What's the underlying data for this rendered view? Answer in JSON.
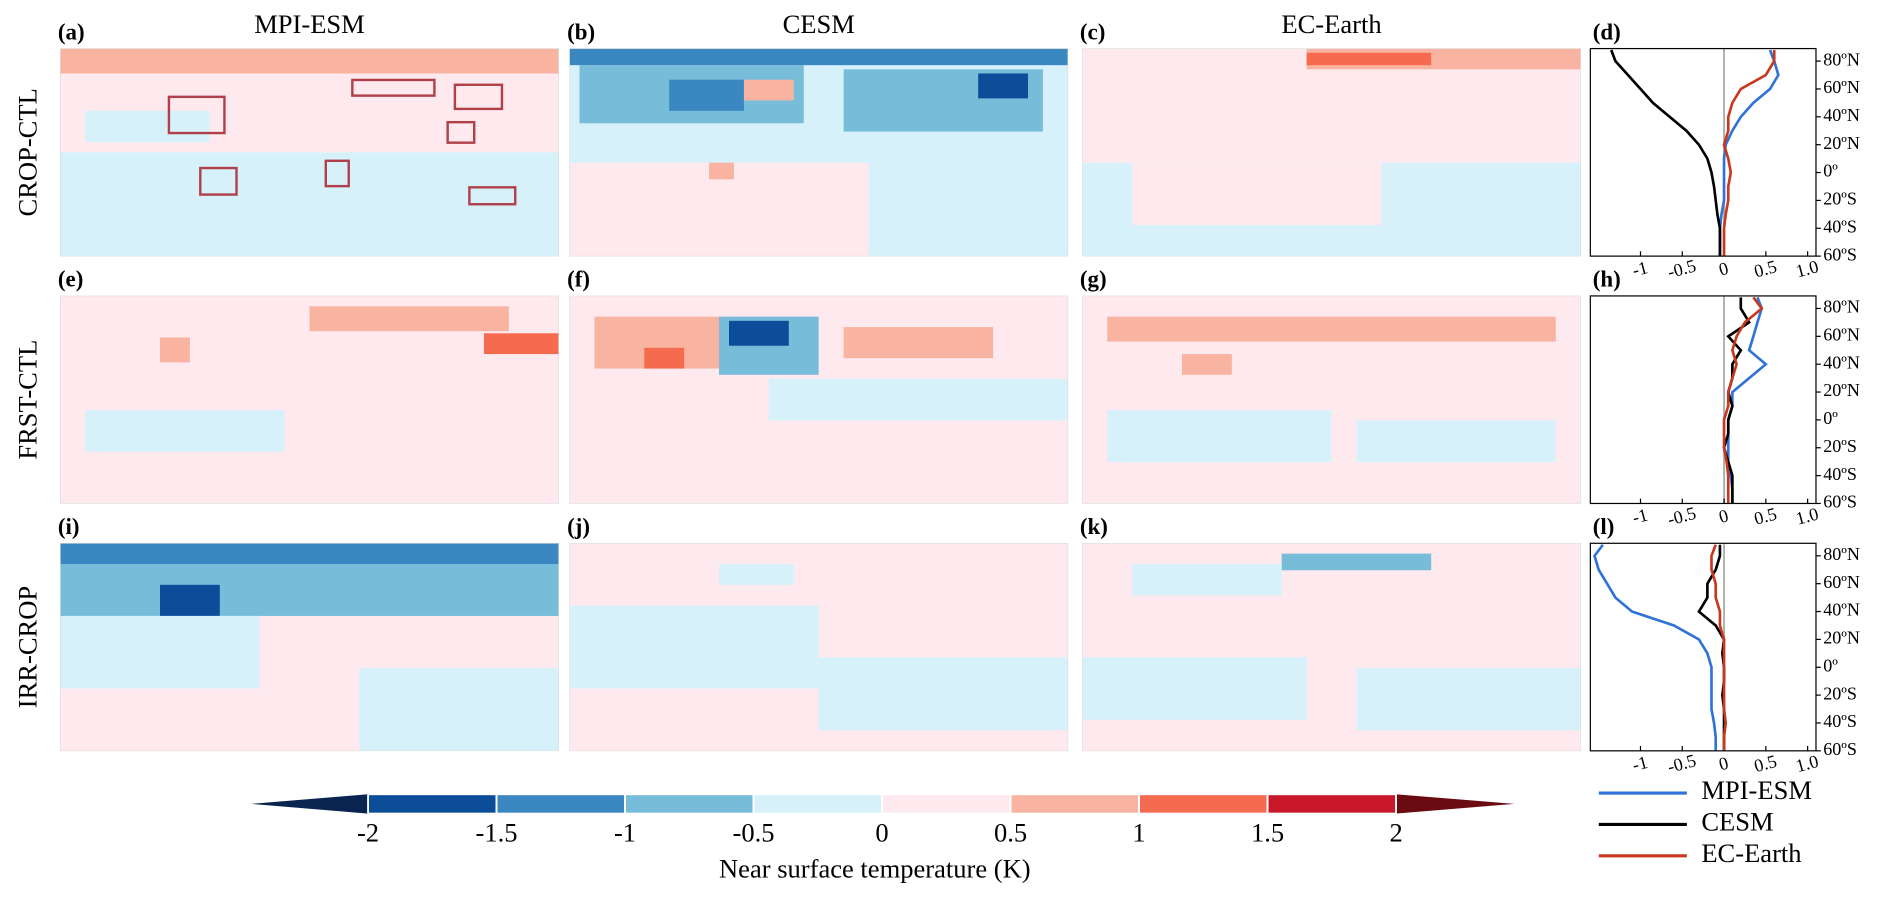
{
  "column_titles": [
    "MPI-ESM",
    "CESM",
    "EC-Earth"
  ],
  "row_labels": [
    "CROP-CTL",
    "FRST-CTL",
    "IRR-CROP"
  ],
  "map_panels": [
    "(a)",
    "(b)",
    "(c)",
    "(e)",
    "(f)",
    "(g)",
    "(i)",
    "(j)",
    "(k)"
  ],
  "colorbar": {
    "label": "Near surface temperature (K)",
    "lim": [
      -2,
      2
    ],
    "ticks": [
      -2,
      -1.5,
      -1,
      -0.5,
      0,
      0.5,
      1,
      1.5,
      2
    ],
    "colors": [
      "#0b4d98",
      "#3b87c2",
      "#77bcd9",
      "#d7f1fb",
      "#fde9ee",
      "#f9b4a1",
      "#f56b4f",
      "#c9182a"
    ],
    "extend_colors": [
      "#08244f",
      "#6a0b12"
    ]
  },
  "chart_data": [
    {
      "type": "line",
      "panel_label": "(d)",
      "y": [
        -60,
        -50,
        -40,
        -30,
        -20,
        -10,
        0,
        10,
        20,
        30,
        40,
        50,
        60,
        70,
        80,
        88
      ],
      "ylim": [
        -60,
        89
      ],
      "yticks": [
        {
          "value": 80,
          "label": "80ºN"
        },
        {
          "value": 60,
          "label": "60ºN"
        },
        {
          "value": 40,
          "label": "40ºN"
        },
        {
          "value": 20,
          "label": "20ºN"
        },
        {
          "value": 0,
          "label": "0º"
        },
        {
          "value": -20,
          "label": "20ºS"
        },
        {
          "value": -40,
          "label": "40ºS"
        },
        {
          "value": -60,
          "label": "60ºS"
        }
      ],
      "xlim": [
        -1.6,
        1.1
      ],
      "xticks": [
        -1,
        -0.5,
        0,
        {
          "value": 1,
          "label": "1.0"
        },
        0.5
      ],
      "series": [
        {
          "name": "MPI-ESM",
          "color": "#2f73d9",
          "values": [
            -0.05,
            -0.05,
            -0.05,
            -0.03,
            0,
            0,
            0,
            0,
            0.02,
            0.1,
            0.2,
            0.35,
            0.55,
            0.65,
            0.6,
            0.55
          ]
        },
        {
          "name": "CESM",
          "color": "#000000",
          "values": [
            -0.05,
            -0.05,
            -0.05,
            -0.08,
            -0.1,
            -0.12,
            -0.15,
            -0.2,
            -0.3,
            -0.45,
            -0.65,
            -0.85,
            -1.0,
            -1.15,
            -1.3,
            -1.35
          ]
        },
        {
          "name": "EC-Earth",
          "color": "#c8381f",
          "values": [
            0,
            0,
            0,
            0.02,
            0.05,
            0.05,
            0.08,
            0.05,
            0,
            0.05,
            0.05,
            0.1,
            0.2,
            0.5,
            0.6,
            0.6
          ]
        }
      ]
    },
    {
      "type": "line",
      "panel_label": "(h)",
      "y": [
        -60,
        -50,
        -40,
        -30,
        -20,
        -10,
        0,
        10,
        20,
        30,
        40,
        50,
        60,
        70,
        80,
        88
      ],
      "ylim": [
        -60,
        89
      ],
      "yticks": [
        {
          "value": 80,
          "label": "80ºN"
        },
        {
          "value": 60,
          "label": "60ºN"
        },
        {
          "value": 40,
          "label": "40ºN"
        },
        {
          "value": 20,
          "label": "20ºN"
        },
        {
          "value": 0,
          "label": "0º"
        },
        {
          "value": -20,
          "label": "20ºS"
        },
        {
          "value": -40,
          "label": "40ºS"
        },
        {
          "value": -60,
          "label": "60ºS"
        }
      ],
      "xlim": [
        -1.6,
        1.1
      ],
      "xticks": [
        -1,
        -0.5,
        0,
        {
          "value": 1,
          "label": "1.0"
        },
        0.5
      ],
      "series": [
        {
          "name": "MPI-ESM",
          "color": "#2f73d9",
          "values": [
            0.1,
            0.1,
            0.08,
            0.05,
            0.05,
            0.05,
            0.05,
            0.1,
            0.1,
            0.3,
            0.5,
            0.3,
            0.35,
            0.4,
            0.45,
            0.4
          ]
        },
        {
          "name": "CESM",
          "color": "#000000",
          "values": [
            0.1,
            0.1,
            0.1,
            0.05,
            0,
            0.05,
            0.05,
            0.1,
            0.05,
            0.1,
            0.1,
            0.2,
            0.05,
            0.3,
            0.2,
            0.2
          ]
        },
        {
          "name": "EC-Earth",
          "color": "#c8381f",
          "values": [
            0.05,
            0.05,
            0.05,
            0.03,
            0,
            0,
            0,
            0.05,
            0.05,
            0.1,
            0.15,
            0.1,
            0.15,
            0.25,
            0.45,
            0.35
          ]
        }
      ]
    },
    {
      "type": "line",
      "panel_label": "(l)",
      "y": [
        -60,
        -50,
        -40,
        -30,
        -20,
        -10,
        0,
        10,
        20,
        30,
        40,
        50,
        60,
        70,
        80,
        88
      ],
      "ylim": [
        -60,
        89
      ],
      "yticks": [
        {
          "value": 80,
          "label": "80ºN"
        },
        {
          "value": 60,
          "label": "60ºN"
        },
        {
          "value": 40,
          "label": "40ºN"
        },
        {
          "value": 20,
          "label": "20ºN"
        },
        {
          "value": 0,
          "label": "0º"
        },
        {
          "value": -20,
          "label": "20ºS"
        },
        {
          "value": -40,
          "label": "40ºS"
        },
        {
          "value": -60,
          "label": "60ºS"
        }
      ],
      "xlim": [
        -1.6,
        1.1
      ],
      "xticks": [
        -1,
        -0.5,
        0,
        {
          "value": 1,
          "label": "1.0"
        },
        0.5
      ],
      "series": [
        {
          "name": "MPI-ESM",
          "color": "#2f73d9",
          "values": [
            -0.1,
            -0.1,
            -0.12,
            -0.15,
            -0.15,
            -0.15,
            -0.15,
            -0.2,
            -0.3,
            -0.6,
            -1.1,
            -1.3,
            -1.4,
            -1.5,
            -1.55,
            -1.45
          ]
        },
        {
          "name": "CESM",
          "color": "#000000",
          "values": [
            0,
            0,
            0,
            0,
            -0.02,
            0,
            0,
            -0.02,
            0,
            -0.1,
            -0.3,
            -0.2,
            -0.2,
            -0.1,
            -0.05,
            -0.05
          ]
        },
        {
          "name": "EC-Earth",
          "color": "#c8381f",
          "values": [
            0,
            0,
            0.02,
            0,
            0,
            0,
            0,
            0,
            0,
            -0.05,
            -0.05,
            -0.1,
            -0.1,
            -0.15,
            -0.15,
            -0.1
          ]
        }
      ]
    }
  ]
}
